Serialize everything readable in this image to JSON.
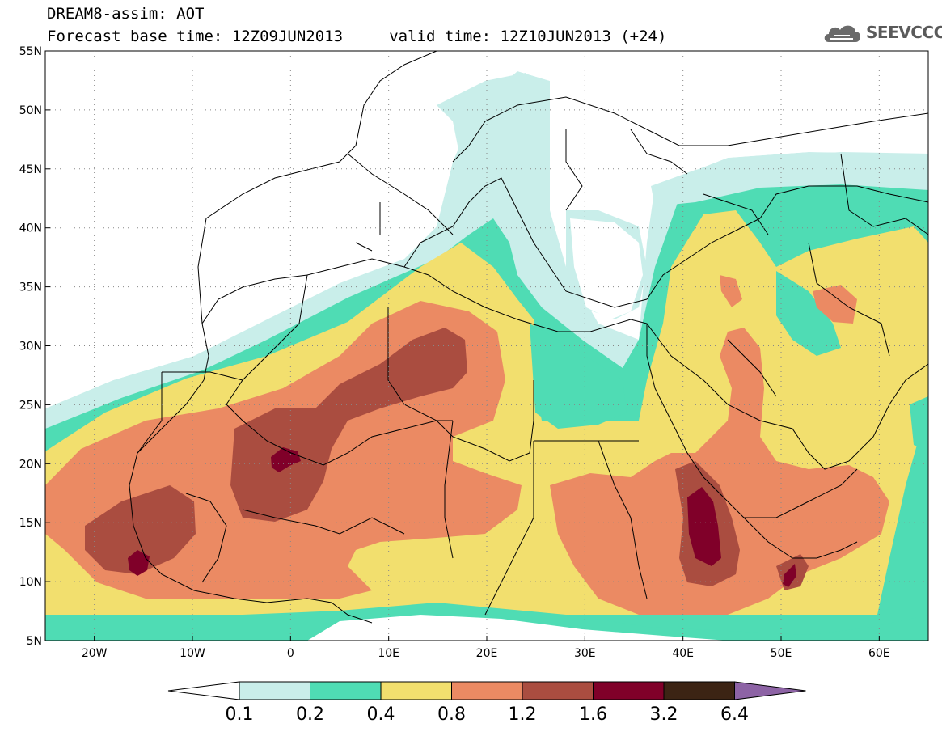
{
  "header": {
    "title": "DREAM8-assim: AOT",
    "subtitle": "Forecast base time: 12Z09JUN2013     valid time: 12Z10JUN2013 (+24)"
  },
  "logo": {
    "text": "SEEVCCC",
    "icon": "cloud-icon"
  },
  "map": {
    "lat_range": [
      5,
      55
    ],
    "lon_range": [
      -25,
      65
    ],
    "lat_ticks": [
      {
        "v": 5,
        "label": "5N"
      },
      {
        "v": 10,
        "label": "10N"
      },
      {
        "v": 15,
        "label": "15N"
      },
      {
        "v": 20,
        "label": "20N"
      },
      {
        "v": 25,
        "label": "25N"
      },
      {
        "v": 30,
        "label": "30N"
      },
      {
        "v": 35,
        "label": "35N"
      },
      {
        "v": 40,
        "label": "40N"
      },
      {
        "v": 45,
        "label": "45N"
      },
      {
        "v": 50,
        "label": "50N"
      },
      {
        "v": 55,
        "label": "55N"
      }
    ],
    "lon_ticks": [
      {
        "v": -20,
        "label": "20W"
      },
      {
        "v": -10,
        "label": "10W"
      },
      {
        "v": 0,
        "label": "0"
      },
      {
        "v": 10,
        "label": "10E"
      },
      {
        "v": 20,
        "label": "20E"
      },
      {
        "v": 30,
        "label": "30E"
      },
      {
        "v": 40,
        "label": "40E"
      },
      {
        "v": 50,
        "label": "50E"
      },
      {
        "v": 60,
        "label": "60E"
      }
    ]
  },
  "colorbar": {
    "labels": [
      "0.1",
      "0.2",
      "0.4",
      "0.8",
      "1.2",
      "1.6",
      "3.2",
      "6.4"
    ],
    "colors": [
      "#ffffff",
      "#c9eeea",
      "#4fdcb4",
      "#f2df6e",
      "#eb8a63",
      "#aa4d40",
      "#800029",
      "#3c2414",
      "#8d63a5"
    ]
  },
  "palette": {
    "c01": "#c9eeea",
    "c02": "#4fdcb4",
    "c04": "#f2df6e",
    "c08": "#eb8a63",
    "c12": "#aa4d40",
    "c16": "#800029"
  }
}
